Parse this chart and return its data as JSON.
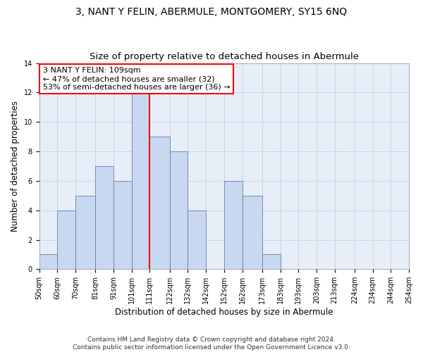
{
  "title": "3, NANT Y FELIN, ABERMULE, MONTGOMERY, SY15 6NQ",
  "subtitle": "Size of property relative to detached houses in Abermule",
  "xlabel": "Distribution of detached houses by size in Abermule",
  "ylabel": "Number of detached properties",
  "bar_color": "#c8d8f0",
  "bar_edge_color": "#6080b0",
  "bins": [
    50,
    60,
    70,
    81,
    91,
    101,
    111,
    122,
    132,
    142,
    152,
    162,
    173,
    183,
    193,
    203,
    213,
    224,
    234,
    244,
    254
  ],
  "bin_labels": [
    "50sqm",
    "60sqm",
    "70sqm",
    "81sqm",
    "91sqm",
    "101sqm",
    "111sqm",
    "122sqm",
    "132sqm",
    "142sqm",
    "152sqm",
    "162sqm",
    "173sqm",
    "183sqm",
    "193sqm",
    "203sqm",
    "213sqm",
    "224sqm",
    "234sqm",
    "244sqm",
    "254sqm"
  ],
  "counts": [
    1,
    4,
    5,
    7,
    6,
    12,
    9,
    8,
    4,
    0,
    6,
    5,
    1,
    0,
    0,
    0,
    0,
    0,
    0,
    0
  ],
  "vline_x": 111,
  "annotation_line1": "3 NANT Y FELIN: 109sqm",
  "annotation_line2": "← 47% of detached houses are smaller (32)",
  "annotation_line3": "53% of semi-detached houses are larger (36) →",
  "annotation_box_color": "white",
  "annotation_box_edge_color": "red",
  "vline_color": "red",
  "grid_color": "#c8d4e8",
  "plot_bg_color": "#e8eef8",
  "background_color": "white",
  "ylim": [
    0,
    14
  ],
  "yticks": [
    0,
    2,
    4,
    6,
    8,
    10,
    12,
    14
  ],
  "footer": "Contains HM Land Registry data © Crown copyright and database right 2024.\nContains public sector information licensed under the Open Government Licence v3.0.",
  "title_fontsize": 10,
  "subtitle_fontsize": 9.5,
  "annotation_fontsize": 8,
  "ylabel_fontsize": 8.5,
  "xlabel_fontsize": 8.5,
  "tick_fontsize": 7,
  "footer_fontsize": 6.5
}
